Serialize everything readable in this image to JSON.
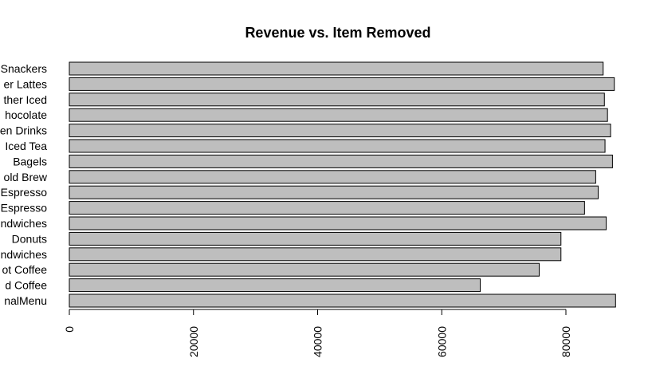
{
  "chart_data": {
    "type": "bar",
    "orientation": "horizontal",
    "title": "Revenue vs. Item Removed",
    "xlabel": "",
    "ylabel": "",
    "xlim": [
      0,
      88000
    ],
    "x_ticks": [
      0,
      20000,
      40000,
      60000,
      80000
    ],
    "x_tick_labels": [
      "0",
      "20000",
      "40000",
      "60000",
      "80000"
    ],
    "categories": [
      "Snackers",
      "er Lattes",
      "ther Iced",
      "hocolate",
      "en Drinks",
      "Iced Tea",
      "Bagels",
      "old Brew",
      "Espresso",
      "Espresso",
      "ndwiches",
      "Donuts",
      "ndwiches",
      "ot Coffee",
      "d Coffee",
      "nalMenu"
    ],
    "values": [
      86000,
      87800,
      86200,
      86700,
      87200,
      86300,
      87500,
      84800,
      85200,
      83000,
      86500,
      79200,
      79200,
      75700,
      66200,
      88000
    ],
    "bar_color": "#bebebe",
    "bar_border": "#000000",
    "grid": false,
    "legend": "none"
  }
}
